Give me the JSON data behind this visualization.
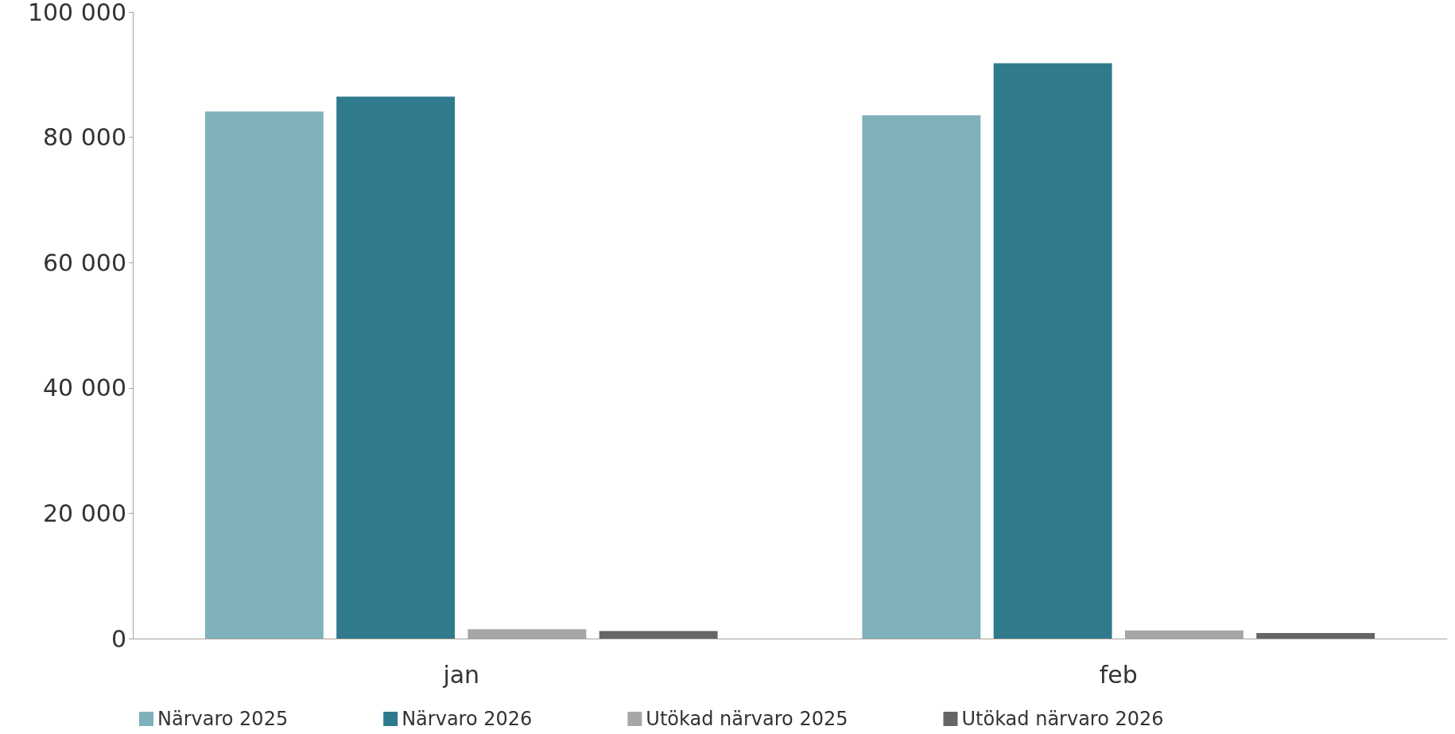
{
  "chart_data": {
    "type": "bar",
    "categories": [
      "jan",
      "feb"
    ],
    "series": [
      {
        "name": "Närvaro 2025",
        "color": "#7fb1bb",
        "values": [
          84100,
          83500
        ]
      },
      {
        "name": "Närvaro 2026",
        "color": "#2f7a8c",
        "values": [
          86500,
          91800
        ]
      },
      {
        "name": "Utökad närvaro 2025",
        "color": "#a6a6a6",
        "values": [
          1500,
          1300
        ]
      },
      {
        "name": "Utökad närvaro 2026",
        "color": "#666666",
        "values": [
          1200,
          900
        ]
      }
    ],
    "ylim": [
      0,
      100000
    ],
    "yticks": [
      {
        "value": 0,
        "label": "0"
      },
      {
        "value": 20000,
        "label": "20 000"
      },
      {
        "value": 40000,
        "label": "40 000"
      },
      {
        "value": 60000,
        "label": "60 000"
      },
      {
        "value": 80000,
        "label": "80 000"
      },
      {
        "value": 100000,
        "label": "100 000"
      }
    ],
    "grid": false,
    "legend": "bottom left"
  }
}
